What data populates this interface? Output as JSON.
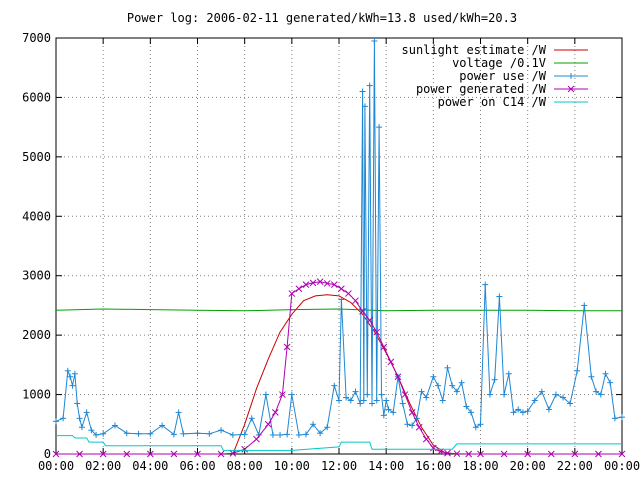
{
  "chart_data": {
    "type": "line",
    "title": "Power log: 2006-02-11 generated/kWh=13.8 used/kWh=20.3",
    "xlabel": "",
    "ylabel": "",
    "x_ticks": [
      "00:00",
      "02:00",
      "04:00",
      "06:00",
      "08:00",
      "10:00",
      "12:00",
      "14:00",
      "16:00",
      "18:00",
      "20:00",
      "22:00",
      "00:00"
    ],
    "y_ticks": [
      "0",
      "1000",
      "2000",
      "3000",
      "4000",
      "5000",
      "6000",
      "7000"
    ],
    "xlim_hours": [
      0,
      24
    ],
    "ylim": [
      0,
      7000
    ],
    "grid": true,
    "legend_position": "top-right",
    "series": [
      {
        "name": "sunlight estimate /W",
        "color": "#cc0000",
        "marker": "none",
        "x": [
          7.5,
          8.0,
          8.5,
          9.0,
          9.5,
          10.0,
          10.5,
          11.0,
          11.5,
          12.0,
          12.5,
          13.0,
          13.5,
          14.0,
          14.5,
          15.0,
          15.5,
          16.0,
          16.5,
          17.0
        ],
        "y": [
          0,
          500,
          1100,
          1600,
          2050,
          2350,
          2580,
          2660,
          2680,
          2660,
          2550,
          2350,
          2060,
          1700,
          1300,
          850,
          450,
          150,
          20,
          0
        ]
      },
      {
        "name": "voltage /0.1V",
        "color": "#00a000",
        "marker": "none",
        "x": [
          0,
          2,
          4,
          6,
          8,
          10,
          12,
          14,
          16,
          18,
          20,
          22,
          24
        ],
        "y": [
          2420,
          2440,
          2430,
          2420,
          2410,
          2430,
          2440,
          2410,
          2420,
          2420,
          2420,
          2410,
          2410
        ]
      },
      {
        "name": "power use /W",
        "color": "#1e87d4",
        "marker": "plus",
        "x": [
          0.0,
          0.3,
          0.5,
          0.6,
          0.7,
          0.8,
          0.9,
          1.0,
          1.1,
          1.3,
          1.5,
          1.7,
          2.0,
          2.5,
          3.0,
          3.5,
          4.0,
          4.5,
          5.0,
          5.2,
          5.4,
          6.0,
          6.5,
          7.0,
          7.5,
          8.0,
          8.3,
          8.6,
          8.9,
          9.2,
          9.5,
          9.8,
          10.0,
          10.3,
          10.6,
          10.9,
          11.2,
          11.5,
          11.8,
          12.0,
          12.1,
          12.3,
          12.5,
          12.7,
          12.9,
          13.0,
          13.05,
          13.1,
          13.2,
          13.3,
          13.4,
          13.5,
          13.6,
          13.7,
          13.8,
          13.9,
          14.0,
          14.1,
          14.3,
          14.5,
          14.7,
          14.9,
          15.1,
          15.3,
          15.5,
          15.7,
          16.0,
          16.2,
          16.4,
          16.6,
          16.8,
          17.0,
          17.2,
          17.4,
          17.6,
          17.8,
          18.0,
          18.2,
          18.4,
          18.6,
          18.8,
          19.0,
          19.2,
          19.4,
          19.6,
          19.8,
          20.0,
          20.3,
          20.6,
          20.9,
          21.2,
          21.5,
          21.8,
          22.1,
          22.4,
          22.7,
          22.9,
          23.1,
          23.3,
          23.5,
          23.7,
          24.0
        ],
        "y": [
          550,
          600,
          1400,
          1300,
          1150,
          1350,
          850,
          600,
          450,
          700,
          400,
          320,
          340,
          480,
          350,
          340,
          340,
          480,
          330,
          700,
          340,
          350,
          340,
          400,
          320,
          330,
          600,
          320,
          1000,
          320,
          320,
          330,
          1000,
          320,
          330,
          500,
          350,
          450,
          1150,
          900,
          2600,
          950,
          900,
          1050,
          850,
          6100,
          900,
          5850,
          1000,
          6200,
          850,
          6950,
          900,
          5500,
          1000,
          650,
          900,
          750,
          700,
          1300,
          850,
          500,
          480,
          600,
          1050,
          950,
          1300,
          1150,
          900,
          1450,
          1150,
          1050,
          1200,
          800,
          700,
          450,
          500,
          2850,
          1000,
          1250,
          2650,
          1000,
          1350,
          700,
          750,
          700,
          720,
          900,
          1050,
          750,
          1000,
          950,
          850,
          1400,
          2500,
          1300,
          1050,
          1000,
          1350,
          1200,
          600,
          620
        ]
      },
      {
        "name": "power generated /W",
        "color": "#b000b0",
        "marker": "cross",
        "x": [
          0,
          1,
          2,
          3,
          4,
          5,
          6,
          7,
          7.5,
          8.0,
          8.5,
          9.0,
          9.3,
          9.6,
          9.8,
          10.0,
          10.3,
          10.6,
          10.9,
          11.2,
          11.5,
          11.8,
          12.1,
          12.4,
          12.7,
          13.0,
          13.3,
          13.6,
          13.9,
          14.2,
          14.5,
          14.8,
          15.1,
          15.4,
          15.7,
          16.0,
          16.3,
          16.6,
          17.0,
          17.5,
          18,
          19,
          20,
          21,
          22,
          23,
          24
        ],
        "y": [
          0,
          0,
          0,
          0,
          0,
          0,
          0,
          0,
          10,
          80,
          250,
          500,
          700,
          1000,
          1800,
          2700,
          2780,
          2850,
          2880,
          2900,
          2870,
          2850,
          2780,
          2700,
          2580,
          2400,
          2250,
          2050,
          1800,
          1550,
          1300,
          1000,
          700,
          450,
          250,
          100,
          40,
          15,
          5,
          0,
          0,
          0,
          0,
          0,
          0,
          0,
          0
        ]
      },
      {
        "name": "power on C14 /W",
        "color": "#00c8c8",
        "marker": "none",
        "x": [
          0,
          0.7,
          0.8,
          1.3,
          1.4,
          2.0,
          2.1,
          7.0,
          7.1,
          10.0,
          12.0,
          12.1,
          13.3,
          13.4,
          16.8,
          17.0,
          24.0
        ],
        "y": [
          310,
          310,
          270,
          270,
          200,
          200,
          140,
          140,
          60,
          60,
          120,
          200,
          200,
          80,
          80,
          170,
          170
        ]
      }
    ]
  }
}
